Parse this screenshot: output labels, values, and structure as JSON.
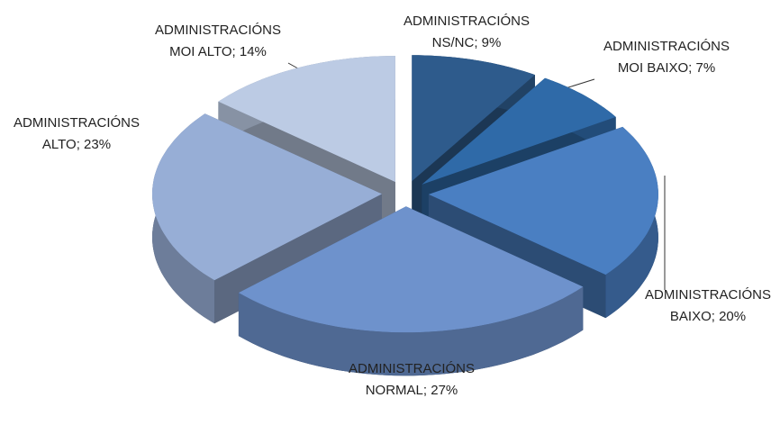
{
  "chart_data": {
    "type": "pie",
    "values": [
      9,
      7,
      20,
      27,
      23,
      14
    ],
    "value_labels": [
      "ADMINISTRACIÓNS NS/NC; 9%",
      "ADMINISTRACIÓNS MOI BAIXO; 7%",
      "ADMINISTRACIÓNS BAIXO; 20%",
      "ADMINISTRACIÓNS NORMAL; 27%",
      "ADMINISTRACIÓNS ALTO; 23%",
      "ADMINISTRACIÓNS MOI ALTO; 14%"
    ],
    "colors": [
      "#2e5b8c",
      "#2f6aa8",
      "#4a7fc2",
      "#6e92cc",
      "#97aed6",
      "#bccbe4"
    ]
  }
}
